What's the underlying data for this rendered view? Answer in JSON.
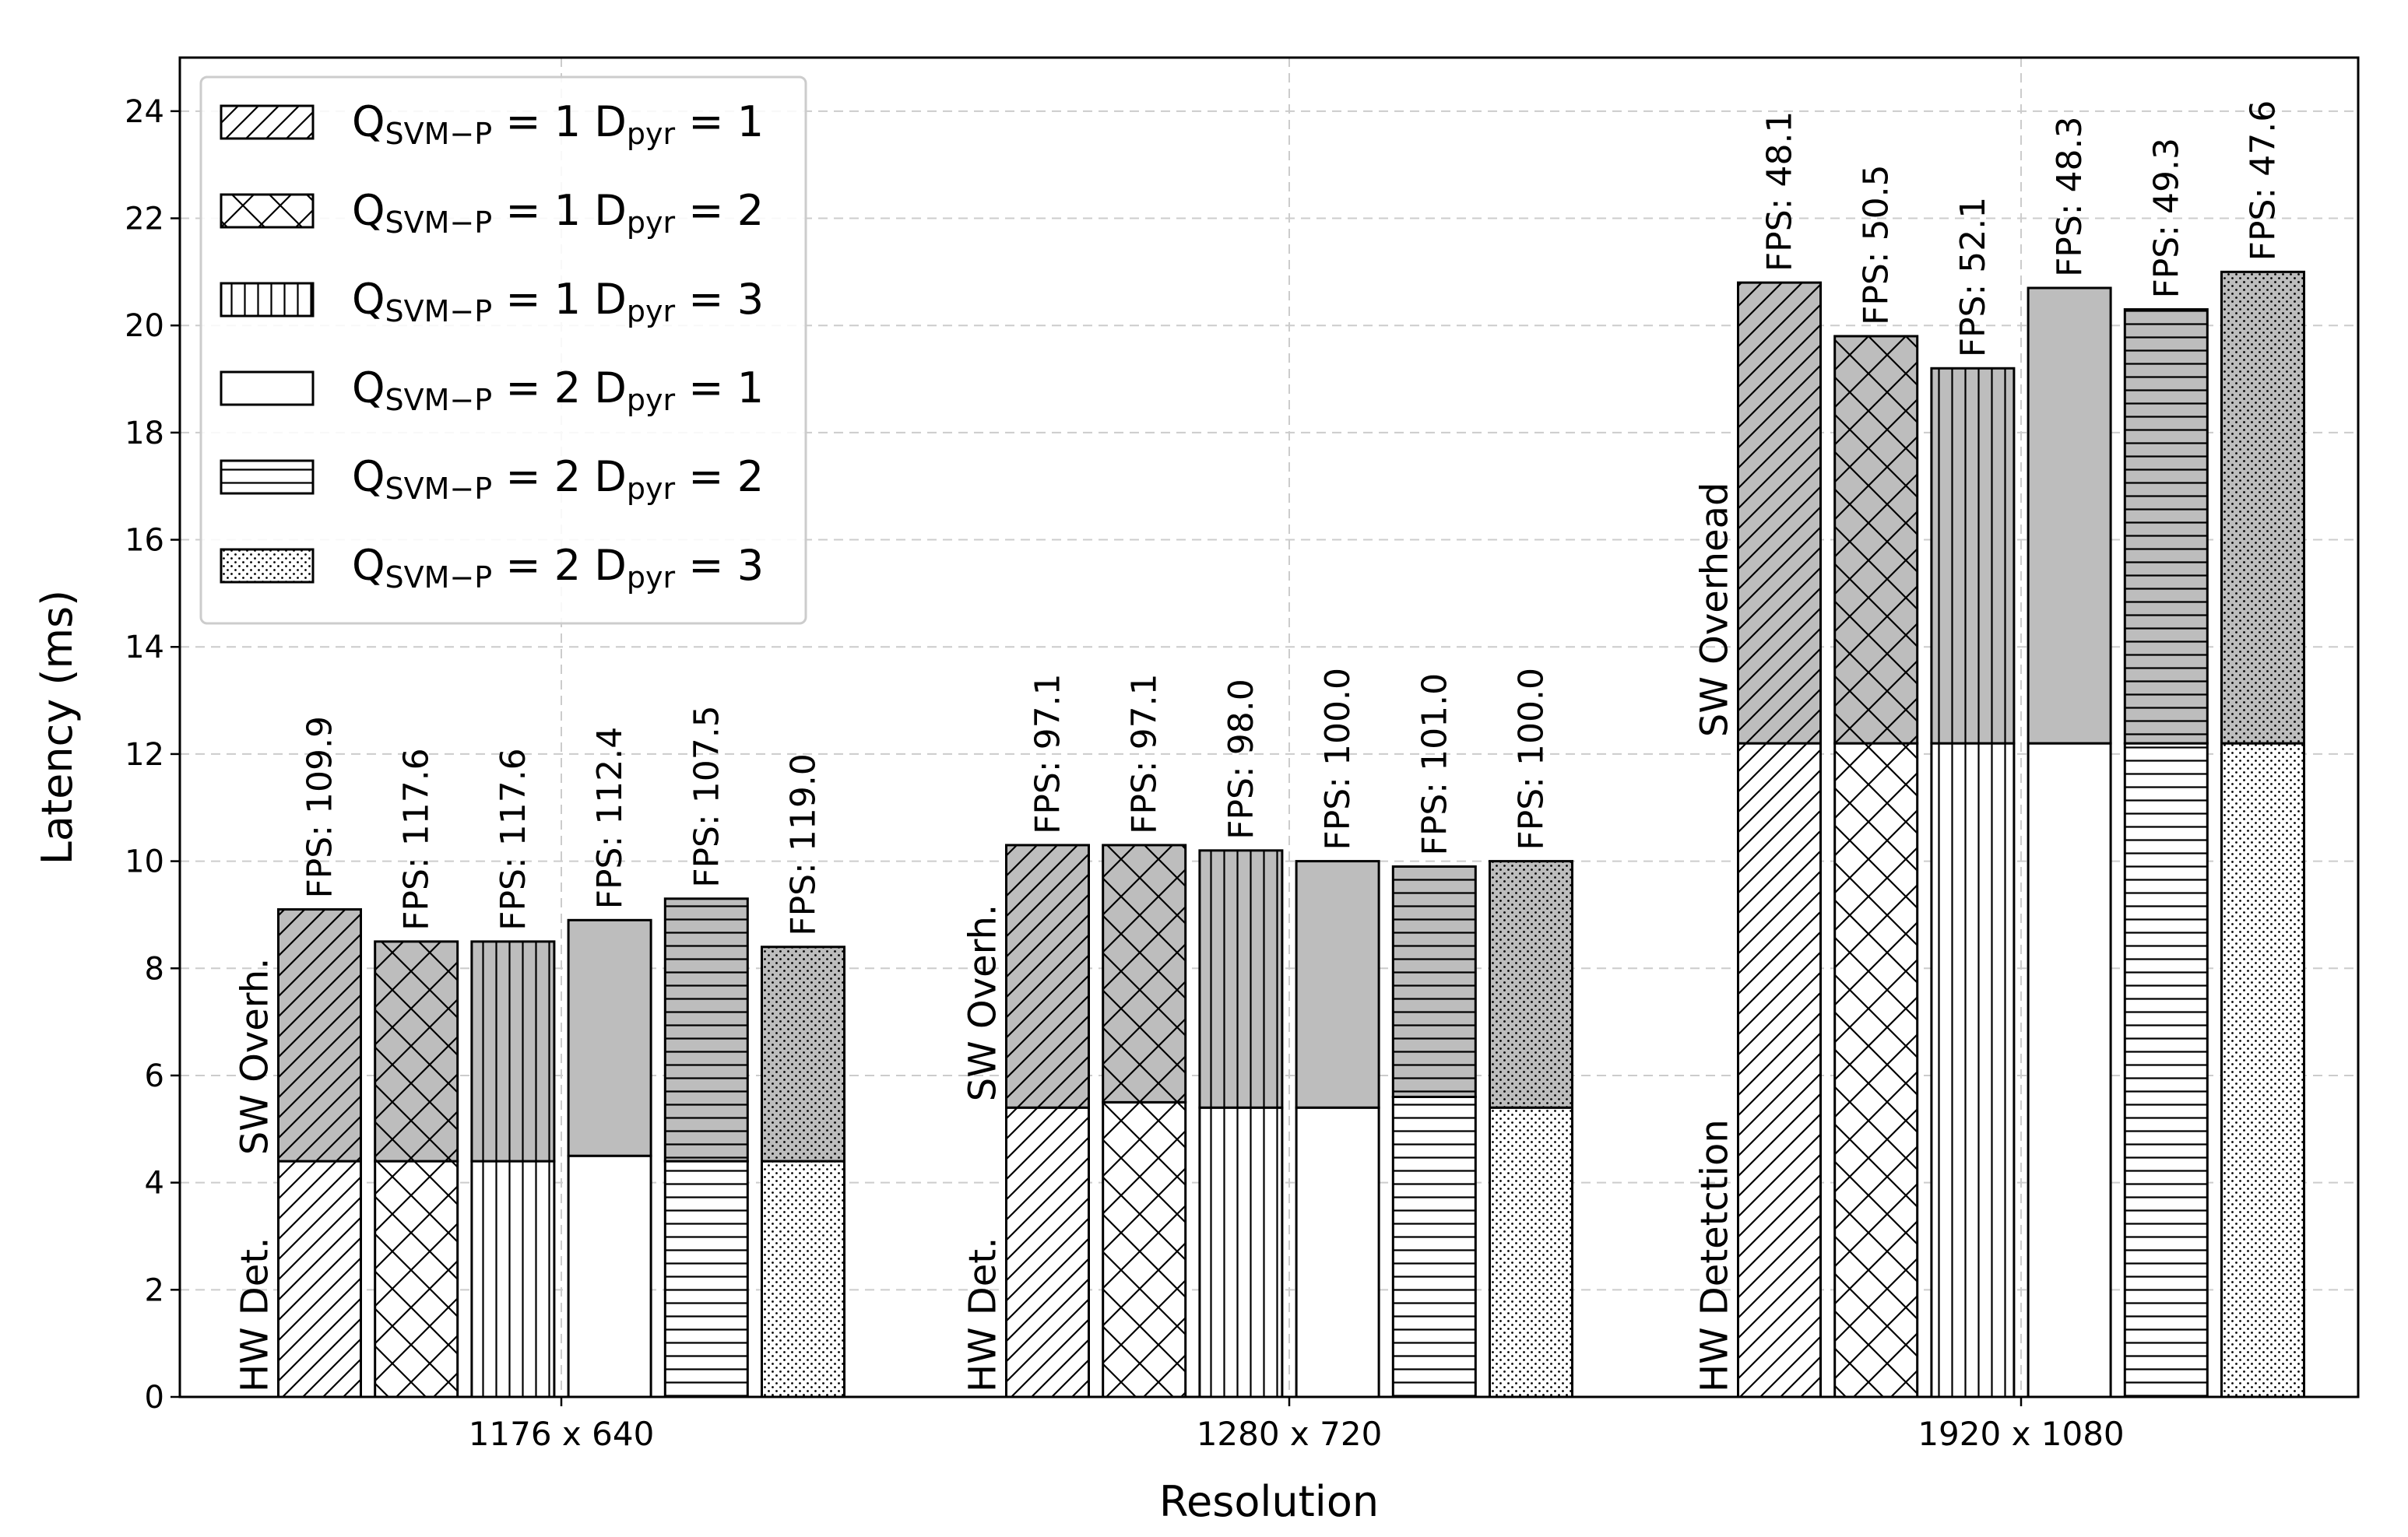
{
  "chart_data": {
    "type": "bar",
    "stacked": true,
    "xlabel": "Resolution",
    "ylabel": "Latency (ms)",
    "ylim": [
      0,
      25
    ],
    "yticks": [
      0,
      2,
      4,
      6,
      8,
      10,
      12,
      14,
      16,
      18,
      20,
      22,
      24
    ],
    "grid": true,
    "legend_position": "top-left",
    "categories": [
      "1176 x 640",
      "1280 x 720",
      "1920 x 1080"
    ],
    "components": [
      "HW Detection",
      "SW Overhead"
    ],
    "colors": {
      "hw": "#ffffff",
      "sw": "#bdbdbd",
      "edge": "#000000",
      "grid": "#cccccc"
    },
    "series": [
      {
        "name": "Q_SVM-P = 1 D_pyr = 1",
        "q": "1",
        "d": "1",
        "hatch": "diag",
        "hw": [
          4.4,
          5.4,
          12.2
        ],
        "total": [
          9.1,
          10.3,
          20.8
        ],
        "fps": [
          "FPS: 109.9",
          "FPS: 97.1",
          "FPS: 48.1"
        ]
      },
      {
        "name": "Q_SVM-P = 1 D_pyr = 2",
        "q": "1",
        "d": "2",
        "hatch": "cross",
        "hw": [
          4.4,
          5.5,
          12.2
        ],
        "total": [
          8.5,
          10.3,
          19.8
        ],
        "fps": [
          "FPS: 117.6",
          "FPS: 97.1",
          "FPS: 50.5"
        ]
      },
      {
        "name": "Q_SVM-P = 1 D_pyr = 3",
        "q": "1",
        "d": "3",
        "hatch": "vert",
        "hw": [
          4.4,
          5.4,
          12.2
        ],
        "total": [
          8.5,
          10.2,
          19.2
        ],
        "fps": [
          "FPS: 117.6",
          "FPS: 98.0",
          "FPS: 52.1"
        ]
      },
      {
        "name": "Q_SVM-P = 2 D_pyr = 1",
        "q": "2",
        "d": "1",
        "hatch": "none",
        "hw": [
          4.5,
          5.4,
          12.2
        ],
        "total": [
          8.9,
          10.0,
          20.7
        ],
        "fps": [
          "FPS: 112.4",
          "FPS: 100.0",
          "FPS: 48.3"
        ]
      },
      {
        "name": "Q_SVM-P = 2 D_pyr = 2",
        "q": "2",
        "d": "2",
        "hatch": "horiz",
        "hw": [
          4.4,
          5.6,
          12.2
        ],
        "total": [
          9.3,
          9.9,
          20.3
        ],
        "fps": [
          "FPS: 107.5",
          "FPS: 101.0",
          "FPS: 49.3"
        ]
      },
      {
        "name": "Q_SVM-P = 2 D_pyr = 3",
        "q": "2",
        "d": "3",
        "hatch": "dots",
        "hw": [
          4.4,
          5.4,
          12.2
        ],
        "total": [
          8.4,
          10.0,
          21.0
        ],
        "fps": [
          "FPS: 119.0",
          "FPS: 100.0",
          "FPS: 47.6"
        ]
      }
    ],
    "stack_labels": [
      {
        "hw": "HW Det.",
        "sw": "SW Overh."
      },
      {
        "hw": "HW Det.",
        "sw": "SW Overh."
      },
      {
        "hw": "HW Detetction",
        "sw": "SW Overhead"
      }
    ],
    "legend_text": {
      "q_main": "Q",
      "q_sub": "SVM−P",
      "eq": " = ",
      "d_main": "D",
      "d_sub": "pyr"
    }
  }
}
